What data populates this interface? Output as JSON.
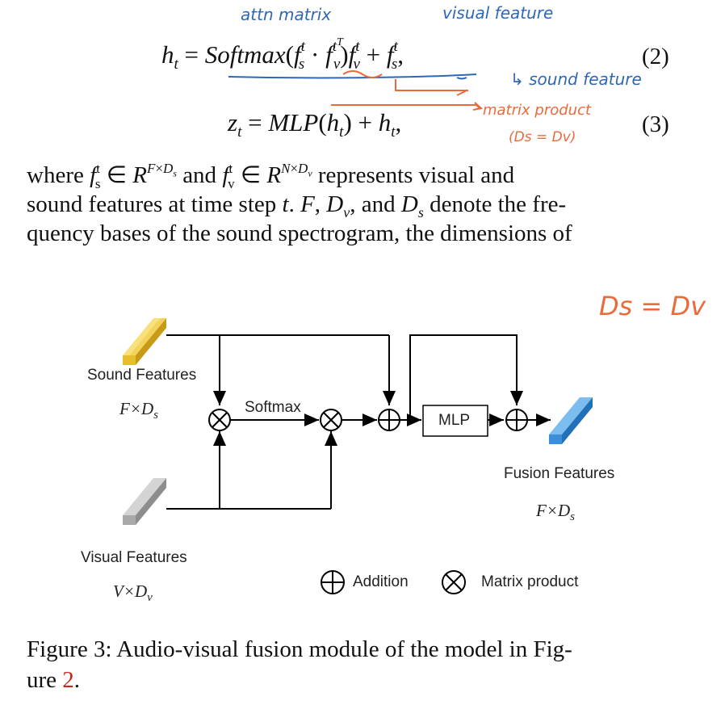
{
  "equations": {
    "eq2": {
      "lhs": "h",
      "lhs_sub": "t",
      "func": "Softmax",
      "fs": "f",
      "fs_sub": "s",
      "fs_sup": "t",
      "fv": "f",
      "fv_sub": "v",
      "fv_sup": "t",
      "T": "T",
      "number": "(2)"
    },
    "eq3": {
      "lhs": "z",
      "lhs_sub": "t",
      "func": "MLP",
      "arg": "h",
      "arg_sub": "t",
      "number": "(3)"
    }
  },
  "annotations": {
    "attn_matrix": "attn matrix",
    "visual_feature": "visual feature",
    "sound_feature": "↳ sound feature",
    "matrix_product": "matrix product",
    "ds_dv": "(Ds = Dv)",
    "ds_eq_dv": "Ds = Dv"
  },
  "paragraph": {
    "line1_a": "where",
    "line1_b": "and",
    "line1_c": "represents visual and",
    "line2": "sound features at time step",
    "line2_b": "and",
    "line2_c": "denote the fre-",
    "line3": "quency bases of the sound spectrogram, the dimensions of"
  },
  "diagram": {
    "sound_label": "Sound Features",
    "sound_dim": "F×D",
    "sound_dim_sub": "s",
    "visual_label": "Visual Features",
    "visual_dim": "V×D",
    "visual_dim_sub": "v",
    "softmax_label": "Softmax",
    "mlp_label": "MLP",
    "fusion_label": "Fusion Features",
    "fusion_dim": "F×D",
    "fusion_dim_sub": "s",
    "legend_addition": "Addition",
    "legend_matrix": "Matrix product",
    "colors": {
      "sound_bar": "#e6bd2c",
      "visual_bar": "#a9a9a9",
      "fusion_bar": "#3a8fd8"
    }
  },
  "caption": {
    "text": "Figure 3: Audio-visual fusion module of the model in Fig-",
    "text2": "ure",
    "ref": "2",
    "end": "."
  }
}
